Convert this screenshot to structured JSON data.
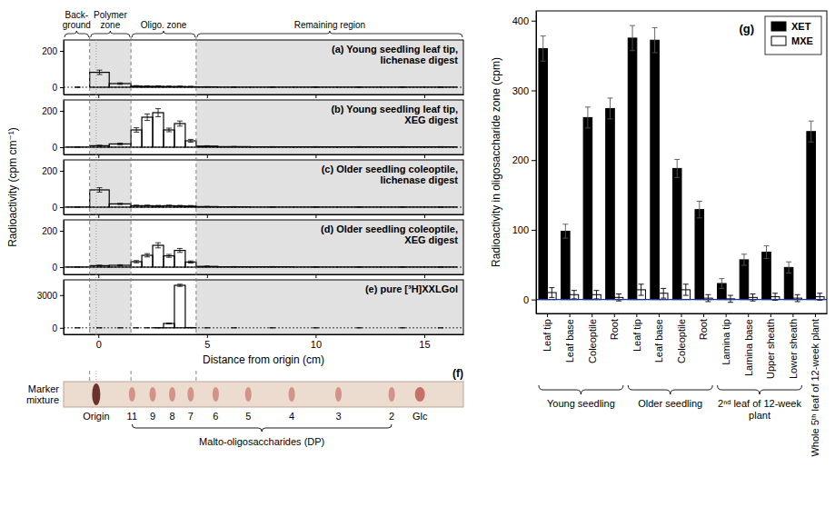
{
  "chart_data": [
    {
      "type": "histogram",
      "xlabel": "Distance from origin (cm)",
      "ylabel": "Radioactivity (cpm cm⁻¹)",
      "xlim": [
        -1.6,
        16.8
      ],
      "xticks": [
        0,
        5,
        10,
        15
      ],
      "zones": [
        {
          "label": "Back-ground",
          "start": -1.6,
          "end": -0.4
        },
        {
          "label": "Polymer zone",
          "start": -0.4,
          "end": 1.5
        },
        {
          "label": "Oligo. zone",
          "start": 1.5,
          "end": 4.5
        },
        {
          "label": "Remaining region",
          "start": 4.5,
          "end": 16.8
        }
      ],
      "bins": [
        -1.5,
        -0.4,
        0.5,
        1.5,
        2,
        2.5,
        3,
        3.5,
        4,
        4.5,
        5.5,
        7,
        9,
        11,
        13,
        15,
        16.5
      ],
      "panels": [
        {
          "title": "(a) Young seedling leaf tip, lichenase digest",
          "values": [
            0,
            82,
            20,
            6,
            5,
            5,
            4,
            4,
            3,
            2,
            1,
            1,
            1,
            1,
            1,
            1
          ],
          "errors": [
            2,
            12,
            4,
            3,
            3,
            3,
            2,
            2,
            2,
            1,
            1,
            1,
            1,
            1,
            1,
            1
          ],
          "ylim": [
            -40,
            260
          ],
          "yticks": [
            0,
            200
          ],
          "tick_labels": "y"
        },
        {
          "title": "(b) Young seedling leaf tip, XEG digest",
          "values": [
            1,
            8,
            18,
            95,
            165,
            190,
            95,
            130,
            35,
            6,
            3,
            2,
            2,
            2,
            2,
            2
          ],
          "errors": [
            1,
            3,
            4,
            12,
            18,
            22,
            10,
            14,
            8,
            2,
            1,
            1,
            1,
            1,
            1,
            1
          ],
          "ylim": [
            -40,
            260
          ],
          "yticks": [
            0,
            200
          ],
          "tick_labels": "y"
        },
        {
          "title": "(c) Older seedling coleoptile, lichenase digest",
          "values": [
            1,
            95,
            18,
            8,
            8,
            7,
            8,
            7,
            6,
            3,
            2,
            1,
            1,
            1,
            1,
            1
          ],
          "errors": [
            1,
            12,
            3,
            3,
            3,
            3,
            3,
            3,
            3,
            1,
            1,
            1,
            1,
            1,
            1,
            1
          ],
          "ylim": [
            -40,
            260
          ],
          "yticks": [
            0,
            200
          ],
          "tick_labels": "y"
        },
        {
          "title": "(d) Older seedling coleoptile, XEG digest",
          "values": [
            1,
            8,
            10,
            30,
            65,
            120,
            62,
            92,
            28,
            4,
            2,
            2,
            1,
            1,
            1,
            1
          ],
          "errors": [
            1,
            3,
            3,
            6,
            9,
            14,
            8,
            11,
            6,
            2,
            1,
            1,
            1,
            1,
            1,
            1
          ],
          "ylim": [
            -40,
            260
          ],
          "yticks": [
            0,
            200
          ],
          "tick_labels": "y"
        },
        {
          "title": "(e) pure [³H]XXLGol",
          "values": [
            0,
            0,
            0,
            0,
            0,
            10,
            400,
            3900,
            20,
            0,
            0,
            0,
            0,
            0,
            0,
            0
          ],
          "errors": [
            0,
            0,
            0,
            0,
            0,
            5,
            40,
            100,
            10,
            0,
            0,
            0,
            0,
            0,
            0,
            0
          ],
          "ylim": [
            -600,
            4400
          ],
          "yticks": [
            0,
            3000
          ]
        }
      ]
    },
    {
      "type": "tlc",
      "title": "(f)",
      "sample_label": "Marker mixture",
      "xlim": [
        -1.6,
        16.8
      ],
      "markers": [
        {
          "label": "Origin",
          "x": -0.1
        },
        {
          "label": "11",
          "x": 1.55
        },
        {
          "label": "9",
          "x": 2.5
        },
        {
          "label": "8",
          "x": 3.4
        },
        {
          "label": "7",
          "x": 4.25
        },
        {
          "label": "6",
          "x": 5.4
        },
        {
          "label": "5",
          "x": 6.9
        },
        {
          "label": "4",
          "x": 8.9
        },
        {
          "label": "3",
          "x": 11.05
        },
        {
          "label": "2",
          "x": 13.5
        },
        {
          "label": "Glc",
          "x": 14.8
        }
      ],
      "bracket_label": "Malto-oligosaccharides (DP)"
    },
    {
      "type": "bar",
      "title": "(g)",
      "ylabel": "Radioactivity in oligosaccharide zone (cpm)",
      "categories": [
        "Leaf tip",
        "Leaf base",
        "Coleoptile",
        "Root",
        "Leaf tip",
        "Leaf base",
        "Coleoptile",
        "Root",
        "Lamina tip",
        "Lamina base",
        "Upper sheath",
        "Lower sheath",
        "Whole 5ᵗʰ leaf of 12-week plant"
      ],
      "groups": [
        {
          "label": "Young seedling",
          "count": 4
        },
        {
          "label": "Older seedling",
          "count": 4
        },
        {
          "label": "2ⁿᵈ leaf of 12-week plant",
          "count": 4
        }
      ],
      "series": [
        {
          "name": "XET",
          "color": "#000000",
          "values": [
            360,
            98,
            261,
            274,
            375,
            372,
            188,
            129,
            23,
            57,
            68,
            46,
            241
          ],
          "errors": [
            18,
            10,
            15,
            15,
            18,
            18,
            13,
            12,
            7,
            8,
            9,
            8,
            15
          ]
        },
        {
          "name": "MXE",
          "color": "#ffffff",
          "values": [
            10,
            7,
            7,
            3,
            14,
            9,
            14,
            2,
            1,
            3,
            4,
            2,
            4
          ],
          "errors": [
            7,
            6,
            6,
            5,
            8,
            7,
            8,
            5,
            5,
            5,
            5,
            5,
            5
          ]
        }
      ],
      "ylim": [
        -20,
        414
      ],
      "yticks": [
        0,
        100,
        200,
        300,
        400
      ],
      "legend": "upper right"
    }
  ]
}
